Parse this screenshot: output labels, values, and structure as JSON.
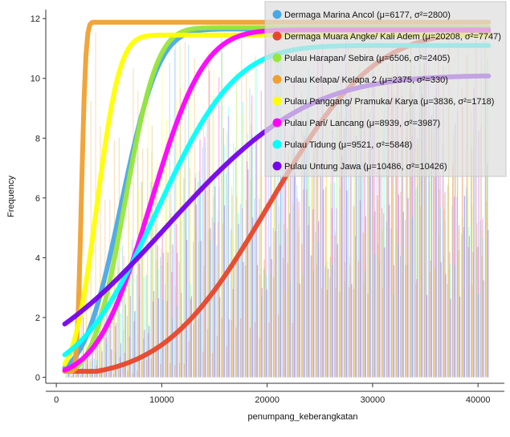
{
  "chart_data": {
    "type": "line",
    "title": "",
    "xlabel": "penumpang_keberangkatan",
    "ylabel": "Frequency",
    "xlim": [
      -1000,
      42500
    ],
    "ylim": [
      -0.2,
      12.3
    ],
    "x_ticks": [
      0,
      10000,
      20000,
      30000,
      40000
    ],
    "x_tick_labels": [
      "0",
      "10000",
      "20000",
      "30000",
      "40000"
    ],
    "y_ticks": [
      0,
      2,
      4,
      6,
      8,
      10,
      12
    ],
    "y_tick_labels": [
      "0",
      "2",
      "4",
      "6",
      "8",
      "10",
      "12"
    ],
    "grid": false,
    "legend_position": "top-right",
    "x_range": [
      800,
      41000
    ],
    "series": [
      {
        "name": "Dermaga Marina Ancol (μ=6177, σ²=2800)",
        "color": "#4aa8e8",
        "mu": 6177,
        "sigma": 2800,
        "max": 11.65
      },
      {
        "name": "Dermaga Muara Angke/ Kali Adem (μ=20208, σ²=7747)",
        "color": "#e8462a",
        "mu": 20208,
        "sigma": 7747,
        "max": 11.6
      },
      {
        "name": "Pulau Harapan/ Sebira (μ=6506, σ²=2405)",
        "color": "#99e63a",
        "mu": 6506,
        "sigma": 2405,
        "max": 11.7
      },
      {
        "name": "Pulau Kelapa/ Kelapa 2 (μ=2375, σ²=330)",
        "color": "#f0a030",
        "mu": 2375,
        "sigma": 330,
        "max": 11.88
      },
      {
        "name": "Pulau Panggang/ Pramuka/ Karya (μ=3836, σ²=1718)",
        "color": "#ffff00",
        "mu": 3836,
        "sigma": 1718,
        "max": 11.45
      },
      {
        "name": "Pulau Pari/ Lancang (μ=8939, σ²=3987)",
        "color": "#ff00ff",
        "mu": 8939,
        "sigma": 3987,
        "max": 11.62
      },
      {
        "name": "Pulau Tidung (μ=9521, σ²=5848)",
        "color": "#00ffff",
        "mu": 9521,
        "sigma": 5848,
        "max": 11.1
      },
      {
        "name": "Pulau Untung Jawa (μ=10486, σ²=10426)",
        "color": "#7700ee",
        "mu": 10486,
        "sigma": 10426,
        "max": 10.1
      }
    ]
  }
}
